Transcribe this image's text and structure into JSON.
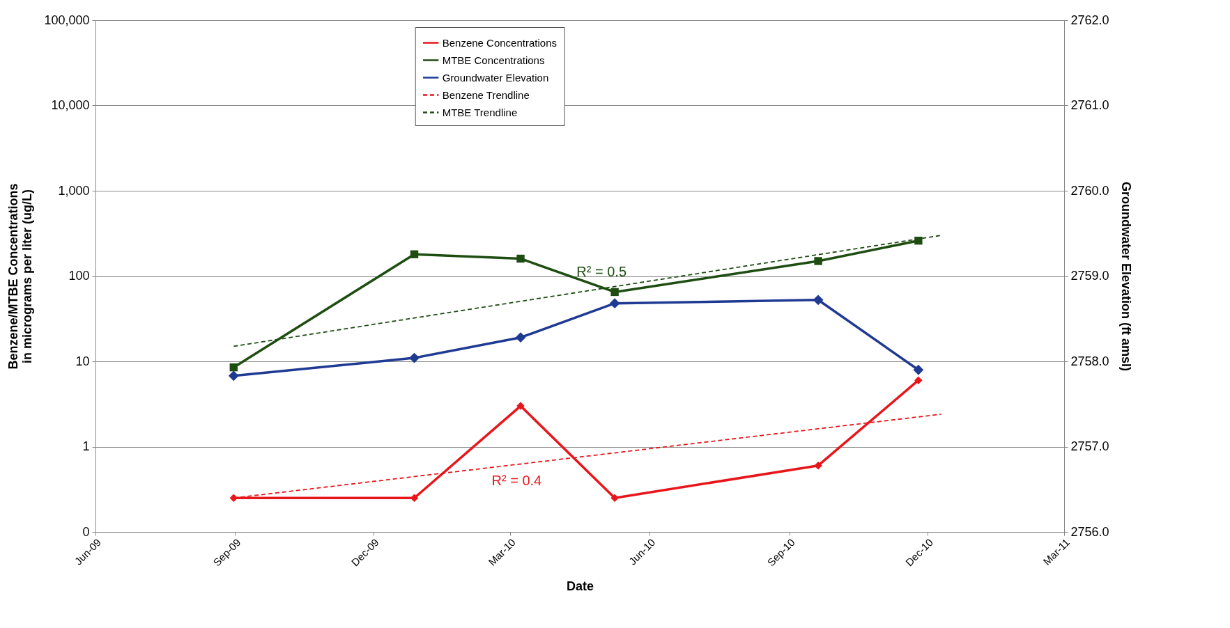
{
  "chart_data": {
    "type": "line",
    "xlabel": "Date",
    "ylabel": "Benzene/MTBE Concentrations\nin micrograms per liter (ug/L)",
    "y2label": "Groundwater Elevation (ft amsl)",
    "x": [
      "2009-08-31",
      "2009-12-28",
      "2010-03-08",
      "2010-05-09",
      "2010-09-20",
      "2010-11-25"
    ],
    "series": [
      {
        "name": "Benzene Concentrations",
        "color": "#e8161b",
        "marker": "diamond",
        "values": [
          0.25,
          0.25,
          3,
          0.25,
          0.6,
          6
        ]
      },
      {
        "name": "MTBE Concentrations",
        "color": "#1e4d12",
        "marker": "square",
        "values": [
          8.5,
          180,
          160,
          65,
          150,
          260
        ]
      },
      {
        "name": "Groundwater Elevation",
        "color": "#1f3a93",
        "marker": "diamond",
        "axis": "y2",
        "values": [
          2757.83,
          2758.04,
          2758.28,
          2758.68,
          2758.72,
          2757.9
        ]
      },
      {
        "name": "Benzene Trendline",
        "type": "line",
        "color": "#e8161b",
        "line_style": "dashed",
        "marker": "none",
        "x": [
          "2009-08-31",
          "2010-12-10"
        ],
        "values": [
          0.25,
          2.4
        ]
      },
      {
        "name": "MTBE Trendline",
        "type": "line",
        "color": "#1e4d12",
        "line_style": "dashed",
        "marker": "none",
        "x": [
          "2009-08-31",
          "2010-12-10"
        ],
        "values": [
          15,
          300
        ]
      }
    ],
    "annotations": [
      "R² = 0.4",
      "R² = 0.5"
    ],
    "log": "y",
    "ylim": [
      0.1,
      100000
    ],
    "yticks": [
      {
        "value": 0.1,
        "label": "0"
      },
      1,
      10,
      100,
      {
        "value": 1000,
        "label": "1,000"
      },
      {
        "value": 10000,
        "label": "10,000"
      },
      {
        "value": 100000,
        "label": "100,000"
      }
    ],
    "y2lim": [
      2756,
      2762
    ],
    "y2ticks": [
      {
        "value": 2756,
        "label": "2756.0"
      },
      {
        "value": 2757,
        "label": "2757.0"
      },
      {
        "value": 2758,
        "label": "2758.0"
      },
      {
        "value": 2759,
        "label": "2759.0"
      },
      {
        "value": 2760,
        "label": "2760.0"
      },
      {
        "value": 2761,
        "label": "2761.0"
      },
      {
        "value": 2762,
        "label": "2762.0"
      }
    ],
    "xlim": [
      "2009-06-01",
      "2011-03-01"
    ],
    "xticks": [
      {
        "value": "2009-06-01",
        "label": "Jun-09"
      },
      {
        "value": "2009-09-01",
        "label": "Sep-09"
      },
      {
        "value": "2009-12-01",
        "label": "Dec-09"
      },
      {
        "value": "2010-03-01",
        "label": "Mar-10"
      },
      {
        "value": "2010-06-01",
        "label": "Jun-10"
      },
      {
        "value": "2010-09-01",
        "label": "Sep-10"
      },
      {
        "value": "2010-12-01",
        "label": "Dec-10"
      },
      {
        "value": "2011-03-01",
        "label": "Mar-11"
      }
    ],
    "grid": "y",
    "legend": "top"
  }
}
